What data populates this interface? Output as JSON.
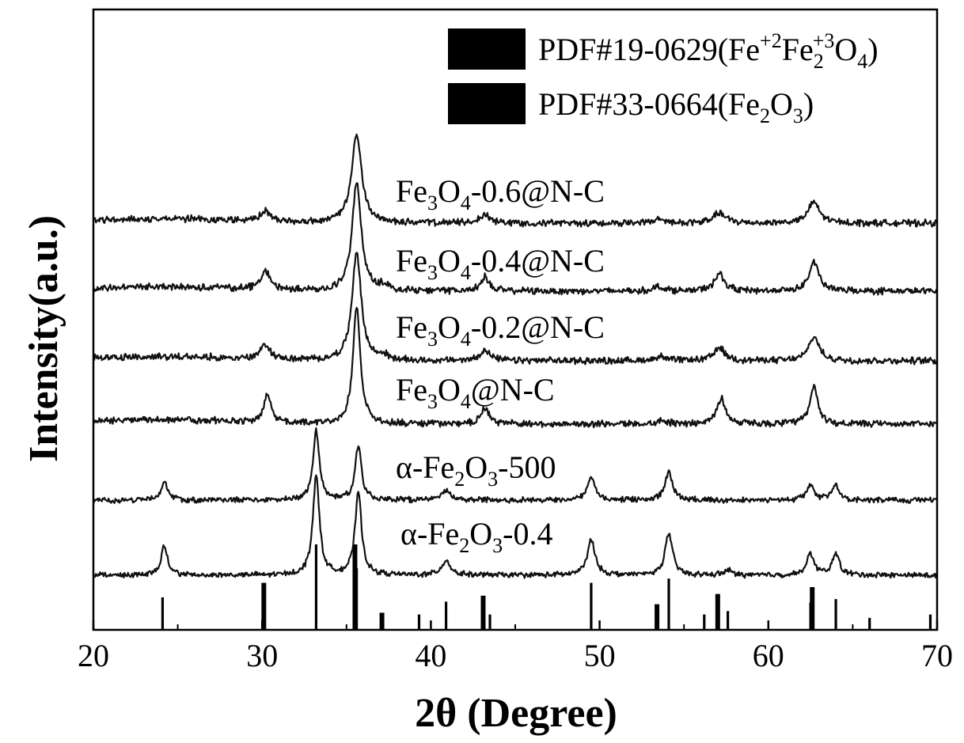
{
  "chart_data": {
    "type": "line",
    "xlabel": "2θ (Degree)",
    "ylabel": "Intensity(a.u.)",
    "xlim": [
      20,
      70
    ],
    "x_ticks": [
      "20",
      "30",
      "40",
      "50",
      "60",
      "70"
    ],
    "y_ticks_shown": false,
    "grid": false,
    "legend_position": "top-right",
    "legend": [
      {
        "label": "PDF#19-0629(Fe+2Fe2+3O4)",
        "display_parts": [
          "PDF#19-0629(Fe",
          "+2",
          "Fe",
          "2",
          "+3",
          "O",
          "4",
          ")"
        ]
      },
      {
        "label": "PDF#33-0664(Fe2O3)",
        "display_parts": [
          "PDF#33-0664(Fe",
          "2",
          "O",
          "3",
          ")"
        ]
      }
    ],
    "series": [
      {
        "name": "Fe3O4-0.6@N-C",
        "label_parts": [
          "Fe",
          "3",
          "O",
          "4",
          "-0.6@N-C"
        ],
        "baseline": 0.62,
        "noise": 0.03,
        "peaks": [
          [
            30.2,
            0.12,
            0.35
          ],
          [
            35.6,
            1.02,
            0.35
          ],
          [
            43.2,
            0.1,
            0.35
          ],
          [
            53.6,
            0.04,
            0.4
          ],
          [
            57.1,
            0.12,
            0.4
          ],
          [
            62.7,
            0.24,
            0.4
          ]
        ]
      },
      {
        "name": "Fe3O4-0.4@N-C",
        "label_parts": [
          "Fe",
          "3",
          "O",
          "4",
          "-0.4@N-C"
        ],
        "baseline": 0.84,
        "noise": 0.03,
        "peaks": [
          [
            30.2,
            0.22,
            0.32
          ],
          [
            35.6,
            1.25,
            0.32
          ],
          [
            37.2,
            0.06,
            0.3
          ],
          [
            43.2,
            0.16,
            0.32
          ],
          [
            53.5,
            0.05,
            0.4
          ],
          [
            57.1,
            0.2,
            0.35
          ],
          [
            62.7,
            0.33,
            0.35
          ]
        ]
      },
      {
        "name": "Fe3O4-0.2@N-C",
        "label_parts": [
          "Fe",
          "3",
          "O",
          "4",
          "-0.2@N-C"
        ],
        "baseline": 1.05,
        "noise": 0.03,
        "peaks": [
          [
            30.2,
            0.17,
            0.33
          ],
          [
            35.6,
            1.25,
            0.32
          ],
          [
            37.2,
            0.05,
            0.3
          ],
          [
            43.2,
            0.13,
            0.33
          ],
          [
            53.6,
            0.05,
            0.4
          ],
          [
            57.1,
            0.15,
            0.38
          ],
          [
            62.7,
            0.28,
            0.36
          ]
        ]
      },
      {
        "name": "Fe3O4@N-C",
        "label_parts": [
          "Fe",
          "3",
          "O",
          "4",
          "@N-C"
        ],
        "baseline": 1.35,
        "noise": 0.03,
        "peaks": [
          [
            30.3,
            0.32,
            0.26
          ],
          [
            35.6,
            1.35,
            0.26
          ],
          [
            43.2,
            0.17,
            0.3
          ],
          [
            53.7,
            0.04,
            0.4
          ],
          [
            57.2,
            0.3,
            0.3
          ],
          [
            62.7,
            0.43,
            0.28
          ]
        ]
      },
      {
        "name": "α-Fe2O3-500",
        "label_parts": [
          "α-Fe",
          "2",
          "O",
          "3",
          "-500"
        ],
        "baseline": 1.76,
        "noise": 0.025,
        "peaks": [
          [
            24.2,
            0.22,
            0.22
          ],
          [
            33.2,
            0.8,
            0.22
          ],
          [
            35.7,
            0.62,
            0.22
          ],
          [
            40.9,
            0.12,
            0.28
          ],
          [
            49.5,
            0.28,
            0.26
          ],
          [
            54.1,
            0.32,
            0.26
          ],
          [
            62.5,
            0.17,
            0.25
          ],
          [
            64.0,
            0.16,
            0.25
          ]
        ]
      },
      {
        "name": "α-Fe2O3-0.4",
        "label_parts": [
          "α-Fe",
          "2",
          "O",
          "3",
          "-0.4"
        ],
        "baseline": 2.1,
        "noise": 0.025,
        "peaks": [
          [
            24.2,
            0.33,
            0.23
          ],
          [
            33.2,
            1.15,
            0.23
          ],
          [
            35.7,
            0.95,
            0.23
          ],
          [
            40.9,
            0.17,
            0.3
          ],
          [
            49.5,
            0.4,
            0.28
          ],
          [
            54.1,
            0.48,
            0.26
          ],
          [
            57.6,
            0.06,
            0.25
          ],
          [
            62.5,
            0.25,
            0.25
          ],
          [
            64.0,
            0.25,
            0.25
          ]
        ]
      }
    ],
    "reference_patterns": [
      {
        "name": "PDF#19-0629",
        "lines": [
          [
            30.1,
            0.55
          ],
          [
            35.5,
            1.0
          ],
          [
            37.1,
            0.2
          ],
          [
            43.1,
            0.4
          ],
          [
            53.4,
            0.3
          ],
          [
            57.0,
            0.42
          ],
          [
            62.6,
            0.5
          ],
          [
            74.0,
            0.0
          ]
        ]
      },
      {
        "name": "PDF#33-0664",
        "lines": [
          [
            24.1,
            0.38
          ],
          [
            33.2,
            1.0
          ],
          [
            35.6,
            0.72
          ],
          [
            39.3,
            0.18
          ],
          [
            40.9,
            0.33
          ],
          [
            43.5,
            0.18
          ],
          [
            49.5,
            0.55
          ],
          [
            54.1,
            0.6
          ],
          [
            56.2,
            0.18
          ],
          [
            57.6,
            0.22
          ],
          [
            62.5,
            0.32
          ],
          [
            64.0,
            0.36
          ],
          [
            66.0,
            0.14
          ],
          [
            69.6,
            0.18
          ]
        ]
      }
    ]
  }
}
